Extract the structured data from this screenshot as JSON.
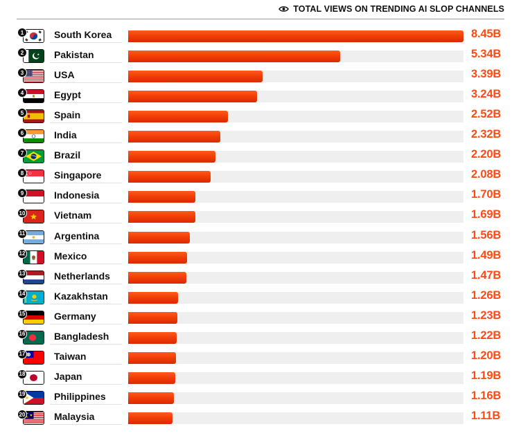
{
  "header": {
    "title": "TOTAL VIEWS ON TRENDING AI SLOP CHANNELS",
    "icon": "eye-icon"
  },
  "colors": {
    "bar": "#ee3a05",
    "value_text": "#ff4a14",
    "track": "#efefef"
  },
  "chart_data": {
    "type": "bar",
    "orientation": "horizontal",
    "title": "TOTAL VIEWS ON TRENDING AI SLOP CHANNELS",
    "unit": "B",
    "xlim": [
      0,
      8.45
    ],
    "categories": [
      "South Korea",
      "Pakistan",
      "USA",
      "Egypt",
      "Spain",
      "India",
      "Brazil",
      "Singapore",
      "Indonesia",
      "Vietnam",
      "Argentina",
      "Mexico",
      "Netherlands",
      "Kazakhstan",
      "Germany",
      "Bangladesh",
      "Taiwan",
      "Japan",
      "Philippines",
      "Malaysia"
    ],
    "ranks": [
      "1",
      "2",
      "3",
      "4",
      "5",
      "6",
      "7",
      "8",
      "9",
      "10",
      "11",
      "12",
      "13",
      "14",
      "15",
      "16",
      "17",
      "18",
      "19",
      "20"
    ],
    "values": [
      8.45,
      5.34,
      3.39,
      3.24,
      2.52,
      2.32,
      2.2,
      2.08,
      1.7,
      1.69,
      1.56,
      1.49,
      1.47,
      1.26,
      1.23,
      1.22,
      1.2,
      1.19,
      1.16,
      1.11
    ],
    "value_labels": [
      "8.45B",
      "5.34B",
      "3.39B",
      "3.24B",
      "2.52B",
      "2.32B",
      "2.20B",
      "2.08B",
      "1.70B",
      "1.69B",
      "1.56B",
      "1.49B",
      "1.47B",
      "1.26B",
      "1.23B",
      "1.22B",
      "1.20B",
      "1.19B",
      "1.16B",
      "1.11B"
    ],
    "flags": [
      "south-korea-flag-icon",
      "pakistan-flag-icon",
      "usa-flag-icon",
      "egypt-flag-icon",
      "spain-flag-icon",
      "india-flag-icon",
      "brazil-flag-icon",
      "singapore-flag-icon",
      "indonesia-flag-icon",
      "vietnam-flag-icon",
      "argentina-flag-icon",
      "mexico-flag-icon",
      "netherlands-flag-icon",
      "kazakhstan-flag-icon",
      "germany-flag-icon",
      "bangladesh-flag-icon",
      "taiwan-flag-icon",
      "japan-flag-icon",
      "philippines-flag-icon",
      "malaysia-flag-icon"
    ]
  }
}
